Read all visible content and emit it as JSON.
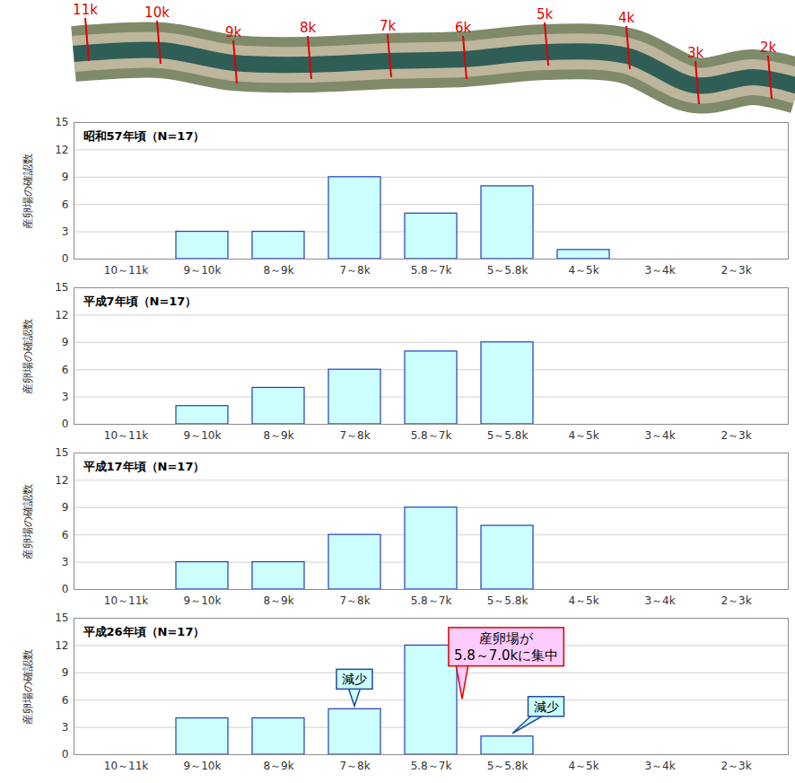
{
  "river_map": {
    "markers": [
      "11k",
      "10k",
      "9k",
      "8k",
      "7k",
      "6k",
      "5k",
      "4k",
      "3k",
      "2k"
    ]
  },
  "chart_data": [
    {
      "type": "bar",
      "title": "昭和57年頃（N=17）",
      "y_label": "産卵場の確認数",
      "categories": [
        "10～11k",
        "9～10k",
        "8～9k",
        "7～8k",
        "5.8～7k",
        "5～5.8k",
        "4～5k",
        "3～4k",
        "2～3k"
      ],
      "values": [
        0,
        3,
        3,
        9,
        5,
        8,
        1,
        0,
        0
      ],
      "color": "#ccffff",
      "ylim": [
        0,
        15
      ],
      "yticks": [
        0,
        3,
        6,
        9,
        12,
        15
      ],
      "grid": true
    },
    {
      "type": "bar",
      "title": "平成7年頃（N=17）",
      "y_label": "産卵場の確認数",
      "categories": [
        "10～11k",
        "9～10k",
        "8～9k",
        "7～8k",
        "5.8～7k",
        "5～5.8k",
        "4～5k",
        "3～4k",
        "2～3k"
      ],
      "values": [
        0,
        2,
        4,
        6,
        8,
        9,
        0,
        0,
        0
      ],
      "color": "#ccffff",
      "ylim": [
        0,
        15
      ],
      "yticks": [
        0,
        3,
        6,
        9,
        12,
        15
      ],
      "grid": true
    },
    {
      "type": "bar",
      "title": "平成17年頃（N=17）",
      "y_label": "産卵場の確認数",
      "categories": [
        "10～11k",
        "9～10k",
        "8～9k",
        "7～8k",
        "5.8～7k",
        "5～5.8k",
        "4～5k",
        "3～4k",
        "2～3k"
      ],
      "values": [
        0,
        3,
        3,
        6,
        9,
        7,
        0,
        0,
        0
      ],
      "color": "#ccffff",
      "ylim": [
        0,
        15
      ],
      "yticks": [
        0,
        3,
        6,
        9,
        12,
        15
      ],
      "grid": true
    },
    {
      "type": "bar",
      "title": "平成26年頃（N=17）",
      "y_label": "産卵場の確認数",
      "categories": [
        "10～11k",
        "9～10k",
        "8～9k",
        "7～8k",
        "5.8～7k",
        "5～5.8k",
        "4～5k",
        "3～4k",
        "2～3k"
      ],
      "values": [
        0,
        4,
        4,
        5,
        12,
        2,
        0,
        0,
        0
      ],
      "color": "#ccffff",
      "ylim": [
        0,
        15
      ],
      "yticks": [
        0,
        3,
        6,
        9,
        12,
        15
      ],
      "grid": true,
      "annotations": [
        {
          "text": "減少",
          "category": "7～8k",
          "color": "#ccffff"
        },
        {
          "text": "産卵場が\n5.8～7.0kに集中",
          "category": "5.8～7k",
          "color": "#ffccff"
        },
        {
          "text": "減少",
          "category": "5～5.8k",
          "color": "#ccffff"
        }
      ]
    }
  ]
}
